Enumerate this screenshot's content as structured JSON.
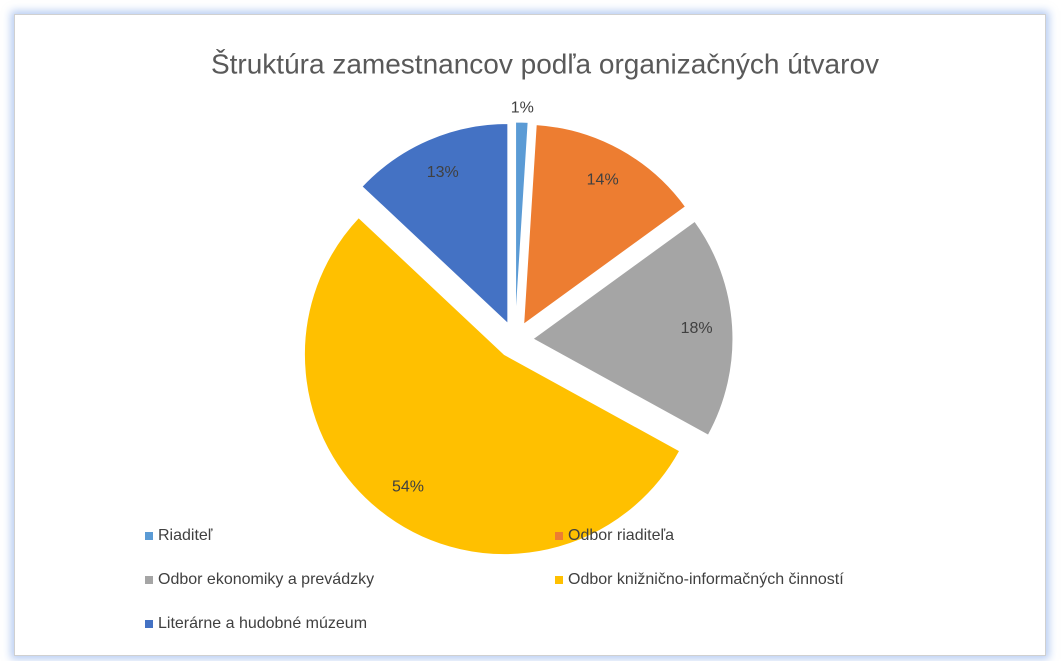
{
  "chart_data": {
    "type": "pie",
    "title": "Štruktúra zamestnancov podľa organizačných útvarov",
    "categories": [
      "Riaditeľ",
      "Odbor riaditeľa",
      "Odbor ekonomiky a prevádzky",
      "Odbor knižnično-informačných činností",
      "Literárne a hudobné múzeum"
    ],
    "values": [
      1,
      14,
      18,
      54,
      13
    ],
    "value_labels": [
      "1%",
      "14%",
      "18%",
      "54%",
      "13%"
    ],
    "colors": [
      "#5b9bd5",
      "#ed7d31",
      "#a5a5a5",
      "#ffc000",
      "#4472c4"
    ],
    "legend": "bottom"
  }
}
